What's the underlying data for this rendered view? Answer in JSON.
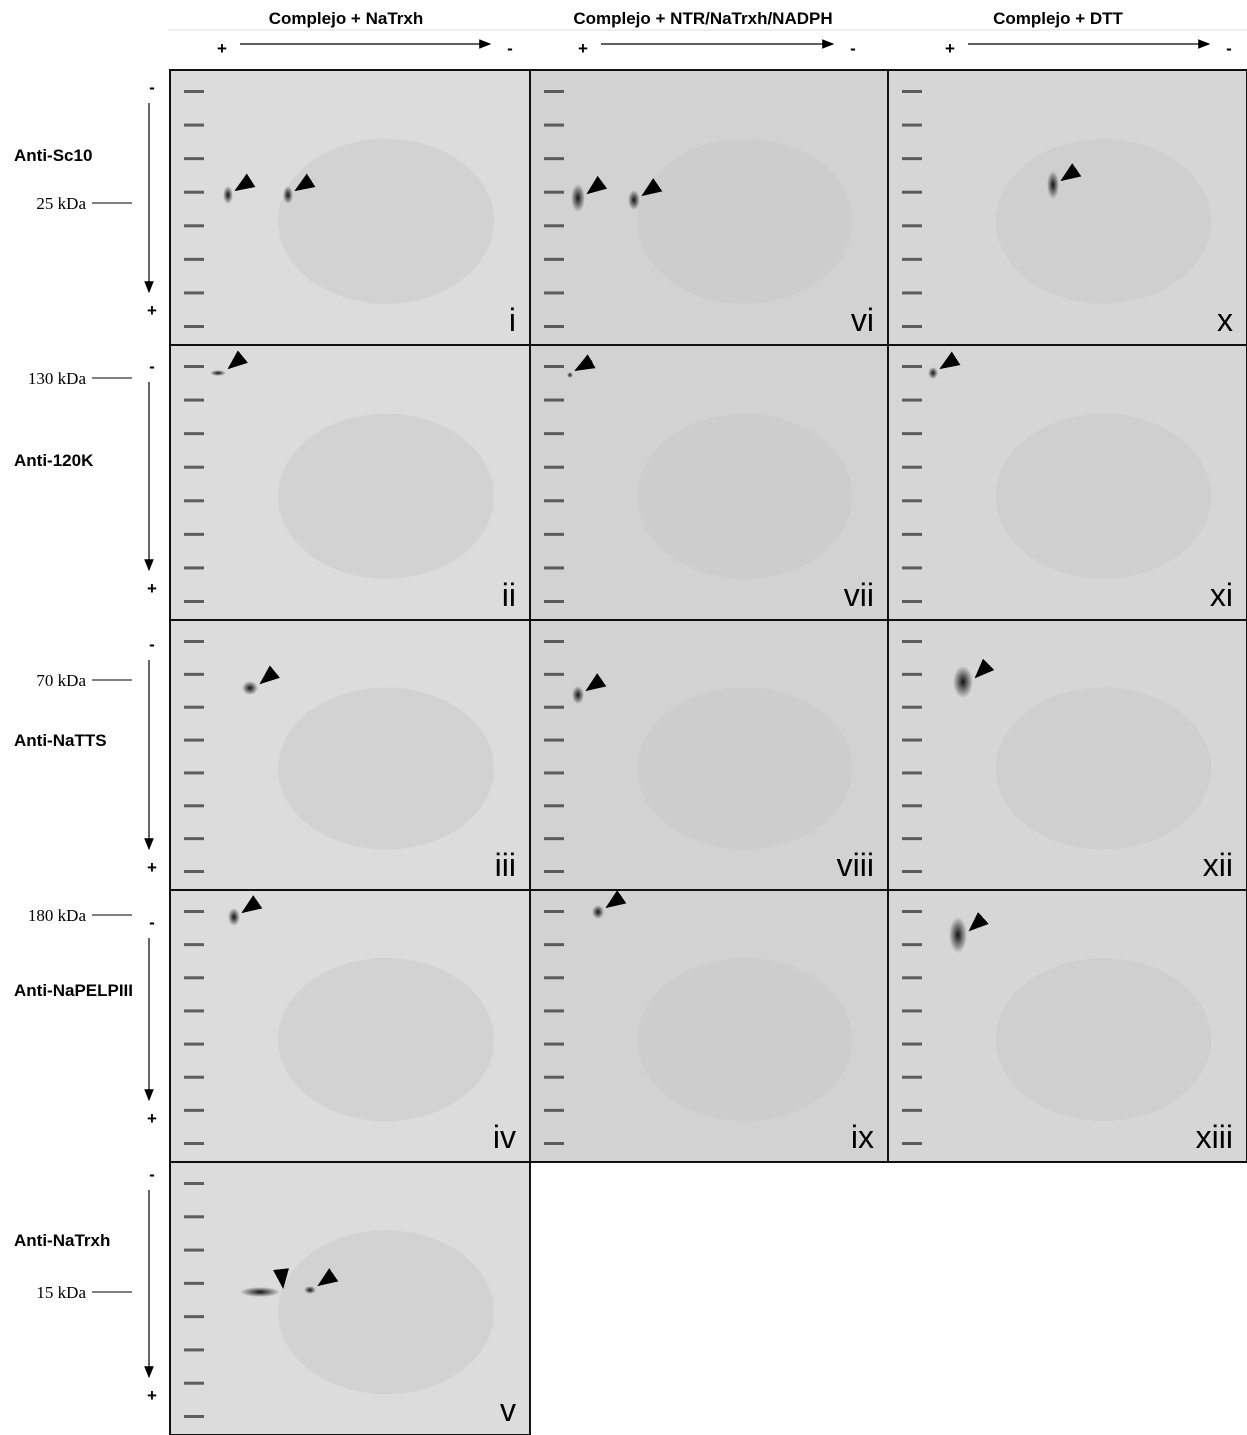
{
  "columns": [
    {
      "title": "Complejo + NaTrxh",
      "plus": "+",
      "minus": "-"
    },
    {
      "title": "Complejo + NTR/NaTrxh/NADPH",
      "plus": "+",
      "minus": "-"
    },
    {
      "title": "Complejo + DTT",
      "plus": "+",
      "minus": "-"
    }
  ],
  "rows": [
    {
      "antibody": "Anti-Sc10",
      "marker": "25 kDa",
      "minus": "-",
      "plus": "+",
      "panels": [
        "i",
        "vi",
        "x"
      ]
    },
    {
      "antibody": "Anti-120K",
      "marker": "130 kDa",
      "minus": "-",
      "plus": "+",
      "panels": [
        "ii",
        "vii",
        "xi"
      ]
    },
    {
      "antibody": "Anti-NaTTS",
      "marker": "70 kDa",
      "minus": "-",
      "plus": "+",
      "panels": [
        "iii",
        "viii",
        "xii"
      ]
    },
    {
      "antibody": "Anti-NaPELPIII",
      "marker": "180 kDa",
      "minus": "-",
      "plus": "+",
      "panels": [
        "iv",
        "ix",
        "xiii"
      ]
    },
    {
      "antibody": "Anti-NaTrxh",
      "marker": "15 kDa",
      "minus": "-",
      "plus": "+",
      "panels": [
        "v"
      ]
    }
  ]
}
